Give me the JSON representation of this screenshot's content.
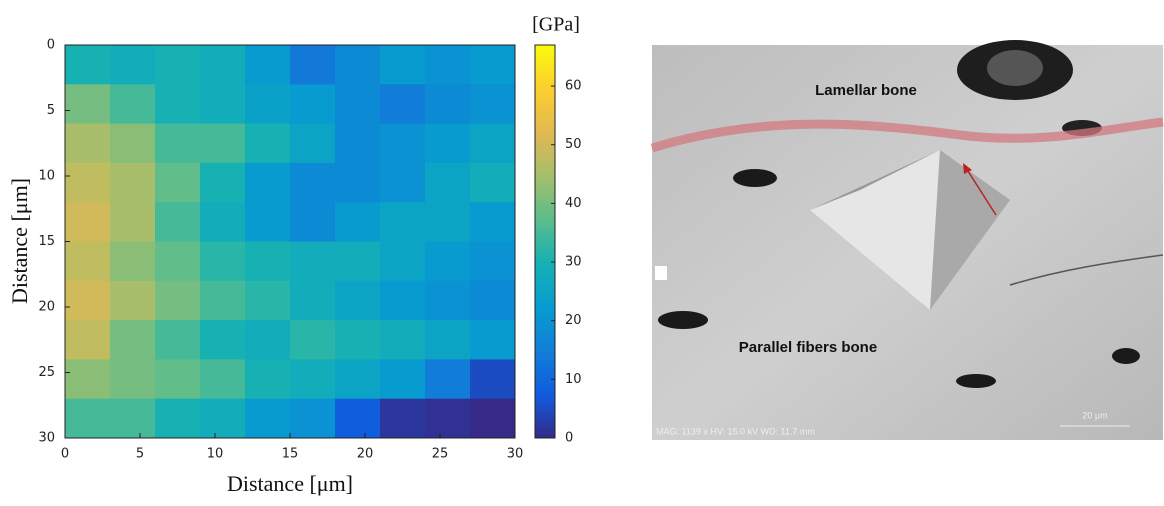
{
  "chart_data": {
    "type": "heatmap",
    "colormap": "parula",
    "xlabel": "Distance [μm]",
    "ylabel": "Distance [μm]",
    "colorbar_label": "[GPa]",
    "xlim": [
      0,
      30
    ],
    "ylim": [
      30,
      0
    ],
    "xticks": [
      0,
      5,
      10,
      15,
      20,
      25,
      30
    ],
    "yticks": [
      0,
      5,
      10,
      15,
      20,
      25,
      30
    ],
    "clim": [
      0,
      67
    ],
    "cticks": [
      0,
      10,
      20,
      30,
      40,
      50,
      60
    ],
    "x": [
      1.5,
      4.5,
      7.5,
      10.5,
      13.5,
      16.5,
      19.5,
      22.5,
      25.5,
      28.5
    ],
    "y": [
      1.5,
      4.5,
      7.5,
      10.5,
      13.5,
      16.5,
      19.5,
      22.5,
      25.5,
      28.5
    ],
    "z": [
      [
        30,
        28,
        30,
        28,
        22,
        14,
        18,
        22,
        20,
        22
      ],
      [
        40,
        35,
        30,
        28,
        24,
        22,
        18,
        15,
        18,
        20
      ],
      [
        45,
        42,
        35,
        35,
        30,
        25,
        18,
        20,
        22,
        25
      ],
      [
        48,
        45,
        38,
        30,
        22,
        18,
        18,
        20,
        25,
        28
      ],
      [
        50,
        45,
        35,
        28,
        22,
        18,
        22,
        25,
        25,
        22
      ],
      [
        48,
        42,
        38,
        32,
        30,
        28,
        28,
        25,
        22,
        20
      ],
      [
        50,
        45,
        40,
        35,
        32,
        28,
        25,
        22,
        20,
        18
      ],
      [
        48,
        40,
        35,
        30,
        28,
        32,
        30,
        28,
        25,
        22
      ],
      [
        42,
        40,
        38,
        35,
        30,
        28,
        25,
        22,
        15,
        5
      ],
      [
        35,
        35,
        30,
        28,
        22,
        20,
        8,
        2,
        1,
        0
      ]
    ]
  },
  "image": {
    "labels": [
      "Lamellar bone",
      "Parallel fibers bone"
    ],
    "info": "MAG: 1139 x  HV: 15.0 kV  WD: 11.7 mm",
    "scale_bar": "20 μm"
  }
}
